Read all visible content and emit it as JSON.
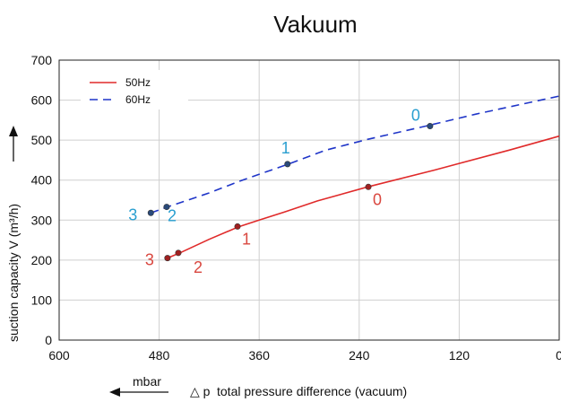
{
  "chart_data": {
    "type": "line",
    "title": "Vakuum",
    "xlabel": "total pressure difference (vacuum)",
    "xlabel_symbol": "△ p",
    "xunit": "mbar",
    "ylabel": "suction capacity V (m³/h)",
    "xlim": [
      600,
      0
    ],
    "ylim": [
      0,
      700
    ],
    "xticks": [
      600,
      480,
      360,
      240,
      120,
      0
    ],
    "yticks": [
      0,
      100,
      200,
      300,
      400,
      500,
      600,
      700
    ],
    "grid": true,
    "legend_position": "top-left",
    "series": [
      {
        "name": "50Hz",
        "color": "#e02a2a",
        "dash": "solid",
        "x": [
          470,
          455,
          420,
          385,
          360,
          330,
          290,
          230,
          150,
          60,
          0
        ],
        "y": [
          205,
          218,
          252,
          283,
          300,
          320,
          348,
          383,
          425,
          475,
          510
        ],
        "points": [
          {
            "label": "0",
            "x": 229,
            "y": 383
          },
          {
            "label": "1",
            "x": 386,
            "y": 284
          },
          {
            "label": "2",
            "x": 457,
            "y": 218
          },
          {
            "label": "3",
            "x": 470,
            "y": 205
          }
        ]
      },
      {
        "name": "60Hz",
        "color": "#1f35c8",
        "dash": "dashed",
        "x": [
          490,
          470,
          420,
          380,
          325,
          280,
          230,
          160,
          100,
          0
        ],
        "y": [
          318,
          333,
          368,
          400,
          440,
          475,
          502,
          535,
          565,
          610
        ],
        "points": [
          {
            "label": "0",
            "x": 155,
            "y": 535
          },
          {
            "label": "1",
            "x": 326,
            "y": 440
          },
          {
            "label": "2",
            "x": 471,
            "y": 333
          },
          {
            "label": "3",
            "x": 490,
            "y": 318
          }
        ]
      }
    ]
  }
}
